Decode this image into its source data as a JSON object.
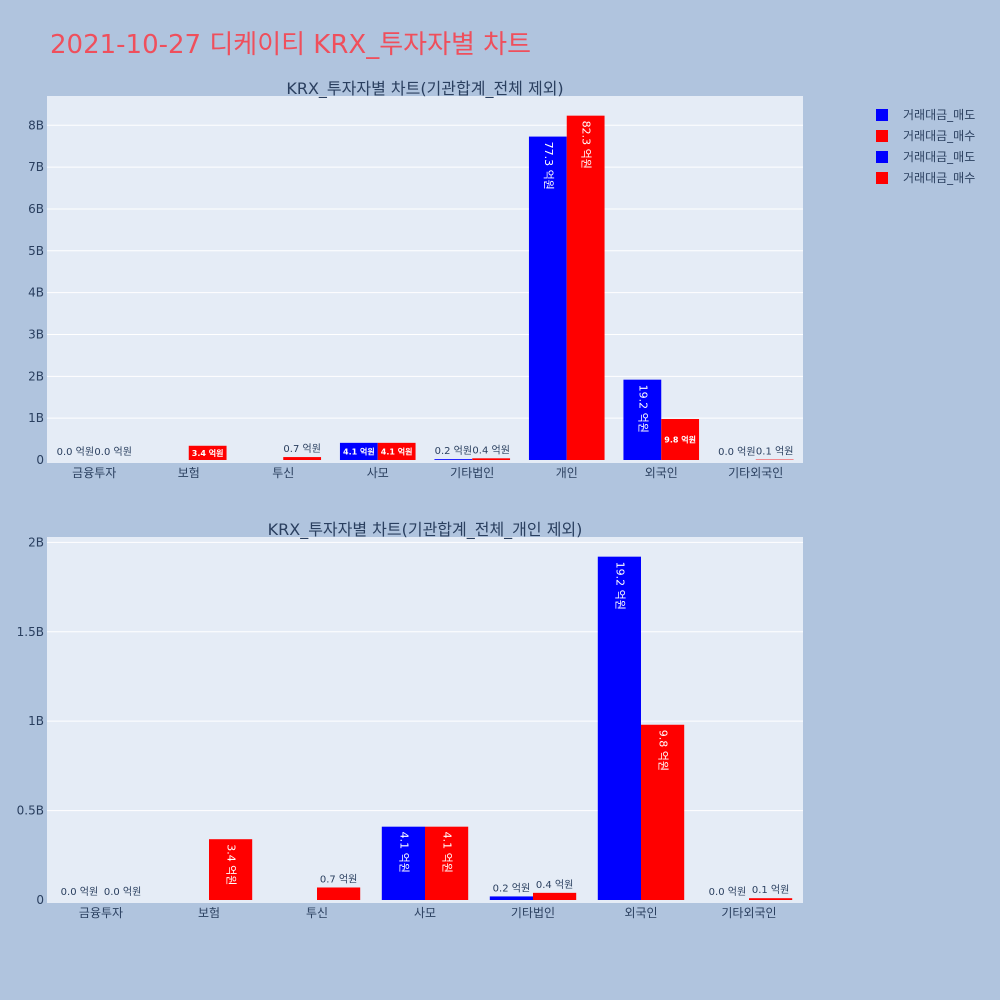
{
  "page": {
    "title": "2021-10-27 디케이티 KRX_투자자별 차트"
  },
  "legend": [
    {
      "label": "거래대금_매도",
      "color": "#0000ff"
    },
    {
      "label": "거래대금_매수",
      "color": "#ff0000"
    },
    {
      "label": "거래대금_매도",
      "color": "#0000ff"
    },
    {
      "label": "거래대금_매수",
      "color": "#ff0000"
    }
  ],
  "colors": {
    "sell": "#0000ff",
    "buy": "#ff0000",
    "plot_bg": "#e5ecf6",
    "page_bg": "#b0c4de",
    "text": "#2a3f5f"
  },
  "chart_data": [
    {
      "type": "bar",
      "title": "KRX_투자자별 차트(기관합계_전체 제외)",
      "categories": [
        "금융투자",
        "보험",
        "투신",
        "사모",
        "기타법인",
        "개인",
        "외국인",
        "기타외국인"
      ],
      "ylim": [
        0,
        8700000000
      ],
      "yticks": [
        0,
        1000000000,
        2000000000,
        3000000000,
        4000000000,
        5000000000,
        6000000000,
        7000000000,
        8000000000
      ],
      "ytick_labels": [
        "0",
        "1B",
        "2B",
        "3B",
        "4B",
        "5B",
        "6B",
        "7B",
        "8B"
      ],
      "grid": true,
      "series": [
        {
          "name": "거래대금_매도",
          "color": "#0000ff",
          "values": [
            0,
            0,
            0,
            410000000,
            20000000,
            7730000000,
            1920000000,
            0
          ],
          "labels": [
            "0.0 억원",
            "",
            "",
            "4.1 억원",
            "0.2 억원",
            "77.3 억원",
            "19.2 억원",
            "0.0 억원"
          ]
        },
        {
          "name": "거래대금_매수",
          "color": "#ff0000",
          "values": [
            0,
            340000000,
            70000000,
            410000000,
            40000000,
            8230000000,
            980000000,
            10000000
          ],
          "labels": [
            "0.0 억원",
            "3.4 억원",
            "0.7 억원",
            "4.1 억원",
            "0.4 억원",
            "82.3 억원",
            "9.8 억원",
            "0.1 억원"
          ]
        }
      ]
    },
    {
      "type": "bar",
      "title": "KRX_투자자별 차트(기관합계_전체_개인 제외)",
      "categories": [
        "금융투자",
        "보험",
        "투신",
        "사모",
        "기타법인",
        "외국인",
        "기타외국인"
      ],
      "ylim": [
        0,
        2030000000
      ],
      "yticks": [
        0,
        500000000,
        1000000000,
        1500000000,
        2000000000
      ],
      "ytick_labels": [
        "0",
        "0.5B",
        "1B",
        "1.5B",
        "2B"
      ],
      "grid": true,
      "series": [
        {
          "name": "거래대금_매도",
          "color": "#0000ff",
          "values": [
            0,
            0,
            0,
            410000000,
            20000000,
            1920000000,
            0
          ],
          "labels": [
            "0.0 억원",
            "",
            "",
            "4.1 억원",
            "0.2 억원",
            "19.2 억원",
            "0.0 억원"
          ]
        },
        {
          "name": "거래대금_매수",
          "color": "#ff0000",
          "values": [
            0,
            340000000,
            70000000,
            410000000,
            40000000,
            980000000,
            10000000
          ],
          "labels": [
            "0.0 억원",
            "3.4 억원",
            "0.7 억원",
            "4.1 억원",
            "0.4 억원",
            "9.8 억원",
            "0.1 억원"
          ]
        }
      ]
    }
  ]
}
